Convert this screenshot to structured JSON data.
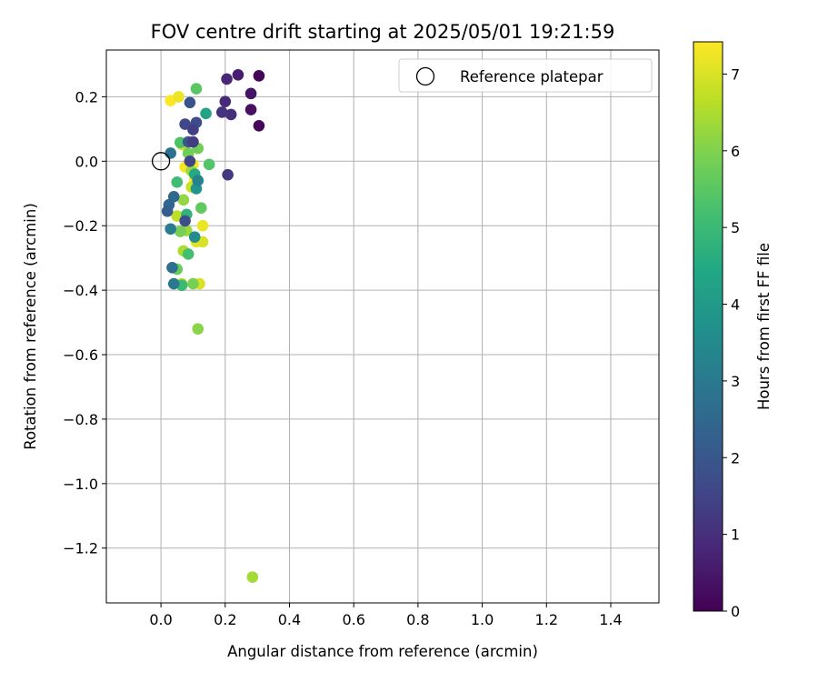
{
  "chart_data": {
    "type": "scatter",
    "title": "FOV centre drift starting at 2025/05/01 19:21:59",
    "xlabel": "Angular distance from reference (arcmin)",
    "ylabel": "Rotation from reference (arcmin)",
    "xlim": [
      -0.17,
      1.55
    ],
    "ylim": [
      -1.37,
      0.345
    ],
    "xticks": [
      0.0,
      0.2,
      0.4,
      0.6,
      0.8,
      1.0,
      1.2,
      1.4
    ],
    "xtick_labels": [
      "0.0",
      "0.2",
      "0.4",
      "0.6",
      "0.8",
      "1.0",
      "1.2",
      "1.4"
    ],
    "yticks": [
      0.2,
      0.0,
      -0.2,
      -0.4,
      -0.6,
      -0.8,
      -1.0,
      -1.2
    ],
    "ytick_labels": [
      "0.2",
      "0.0",
      "−0.2",
      "−0.4",
      "−0.6",
      "−0.8",
      "−1.0",
      "−1.2"
    ],
    "grid": true,
    "colormap": "viridis",
    "colorbar": {
      "label": "Hours from first FF file",
      "range": [
        0,
        7.42
      ],
      "ticks": [
        0,
        1,
        2,
        3,
        4,
        5,
        6,
        7
      ],
      "tick_labels": [
        "0",
        "1",
        "2",
        "3",
        "4",
        "5",
        "6",
        "7"
      ]
    },
    "reference_point": {
      "x": 0.0,
      "y": 0.0
    },
    "legend": {
      "position": "top-right",
      "entries": [
        "Reference platepar"
      ]
    },
    "points": [
      {
        "x": 0.305,
        "y": 0.265,
        "c": 0.1
      },
      {
        "x": 0.305,
        "y": 0.11,
        "c": 0.15
      },
      {
        "x": 0.28,
        "y": 0.16,
        "c": 0.3
      },
      {
        "x": 0.28,
        "y": 0.21,
        "c": 0.4
      },
      {
        "x": 0.24,
        "y": 0.268,
        "c": 0.6
      },
      {
        "x": 0.205,
        "y": 0.255,
        "c": 0.8
      },
      {
        "x": 0.2,
        "y": 0.185,
        "c": 0.9
      },
      {
        "x": 0.218,
        "y": 0.145,
        "c": 1.0
      },
      {
        "x": 0.19,
        "y": 0.152,
        "c": 1.1
      },
      {
        "x": 0.208,
        "y": -0.042,
        "c": 1.2
      },
      {
        "x": 0.1,
        "y": 0.06,
        "c": 1.3
      },
      {
        "x": 0.1,
        "y": 0.098,
        "c": 1.4
      },
      {
        "x": 0.09,
        "y": 0.0,
        "c": 1.5
      },
      {
        "x": 0.075,
        "y": 0.115,
        "c": 1.6
      },
      {
        "x": 0.11,
        "y": 0.12,
        "c": 1.7
      },
      {
        "x": 0.075,
        "y": -0.185,
        "c": 1.8
      },
      {
        "x": 0.09,
        "y": 0.182,
        "c": 1.9
      },
      {
        "x": 0.085,
        "y": 0.06,
        "c": 2.0
      },
      {
        "x": 0.02,
        "y": -0.155,
        "c": 2.2
      },
      {
        "x": 0.025,
        "y": -0.135,
        "c": 2.4
      },
      {
        "x": 0.04,
        "y": -0.11,
        "c": 2.5
      },
      {
        "x": 0.035,
        "y": -0.33,
        "c": 2.7
      },
      {
        "x": 0.03,
        "y": 0.025,
        "c": 2.8
      },
      {
        "x": 0.04,
        "y": -0.38,
        "c": 3.0
      },
      {
        "x": 0.03,
        "y": -0.21,
        "c": 3.1
      },
      {
        "x": 0.115,
        "y": -0.06,
        "c": 3.3
      },
      {
        "x": 0.105,
        "y": -0.235,
        "c": 3.6
      },
      {
        "x": 0.11,
        "y": -0.085,
        "c": 3.8
      },
      {
        "x": 0.14,
        "y": 0.148,
        "c": 4.3
      },
      {
        "x": 0.105,
        "y": -0.04,
        "c": 4.5
      },
      {
        "x": 0.08,
        "y": -0.165,
        "c": 4.8
      },
      {
        "x": 0.065,
        "y": -0.385,
        "c": 5.0
      },
      {
        "x": 0.05,
        "y": -0.065,
        "c": 5.1
      },
      {
        "x": 0.085,
        "y": -0.288,
        "c": 5.2
      },
      {
        "x": 0.06,
        "y": 0.058,
        "c": 5.3
      },
      {
        "x": 0.15,
        "y": -0.01,
        "c": 5.4
      },
      {
        "x": 0.11,
        "y": 0.225,
        "c": 5.5
      },
      {
        "x": 0.125,
        "y": -0.145,
        "c": 5.6
      },
      {
        "x": 0.05,
        "y": -0.335,
        "c": 5.7
      },
      {
        "x": 0.085,
        "y": 0.025,
        "c": 5.8
      },
      {
        "x": 0.115,
        "y": 0.04,
        "c": 5.8
      },
      {
        "x": 0.06,
        "y": -0.218,
        "c": 5.9
      },
      {
        "x": 0.1,
        "y": -0.38,
        "c": 5.9
      },
      {
        "x": 0.115,
        "y": -0.52,
        "c": 6.1
      },
      {
        "x": 0.07,
        "y": -0.12,
        "c": 6.2
      },
      {
        "x": 0.08,
        "y": -0.215,
        "c": 6.3
      },
      {
        "x": 0.095,
        "y": -0.03,
        "c": 6.3
      },
      {
        "x": 0.285,
        "y": -1.29,
        "c": 6.4
      },
      {
        "x": 0.07,
        "y": -0.278,
        "c": 6.5
      },
      {
        "x": 0.065,
        "y": -0.38,
        "c": 6.6
      },
      {
        "x": 0.05,
        "y": -0.17,
        "c": 6.7
      },
      {
        "x": 0.095,
        "y": -0.08,
        "c": 6.8
      },
      {
        "x": 0.065,
        "y": 0.052,
        "c": 6.9
      },
      {
        "x": 0.12,
        "y": -0.38,
        "c": 7.0
      },
      {
        "x": 0.13,
        "y": -0.25,
        "c": 7.0
      },
      {
        "x": 0.11,
        "y": -0.25,
        "c": 7.1
      },
      {
        "x": 0.13,
        "y": -0.2,
        "c": 7.2
      },
      {
        "x": 0.055,
        "y": 0.2,
        "c": 7.2
      },
      {
        "x": 0.1,
        "y": -0.01,
        "c": 7.3
      },
      {
        "x": 0.075,
        "y": -0.018,
        "c": 7.35
      },
      {
        "x": 0.105,
        "y": -0.055,
        "c": 7.4
      },
      {
        "x": 0.03,
        "y": 0.188,
        "c": 7.4
      }
    ]
  }
}
